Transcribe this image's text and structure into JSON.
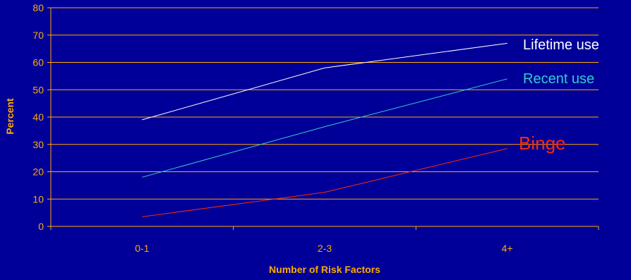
{
  "chart_data": {
    "type": "line",
    "categories": [
      "0-1",
      "2-3",
      "4+"
    ],
    "series": [
      {
        "name": "Lifetime use",
        "values": [
          39,
          58,
          67
        ],
        "color": "#FFFFFF"
      },
      {
        "name": "Recent use",
        "values": [
          18,
          36.5,
          54
        ],
        "color": "#33CCCC"
      },
      {
        "name": "Binge",
        "values": [
          3.5,
          12.5,
          28.5
        ],
        "color": "#FF2A00"
      }
    ],
    "xlabel": "Number of Risk Factors",
    "ylabel": "Percent",
    "ylim": [
      0,
      80
    ],
    "yticks": [
      0,
      10,
      20,
      30,
      40,
      50,
      60,
      70,
      80
    ],
    "grid": true,
    "legend": "labels at end of each line",
    "colors": {
      "background": "#000099",
      "gridline": "#FFAA00",
      "axis_text": "#FFAA00"
    }
  }
}
